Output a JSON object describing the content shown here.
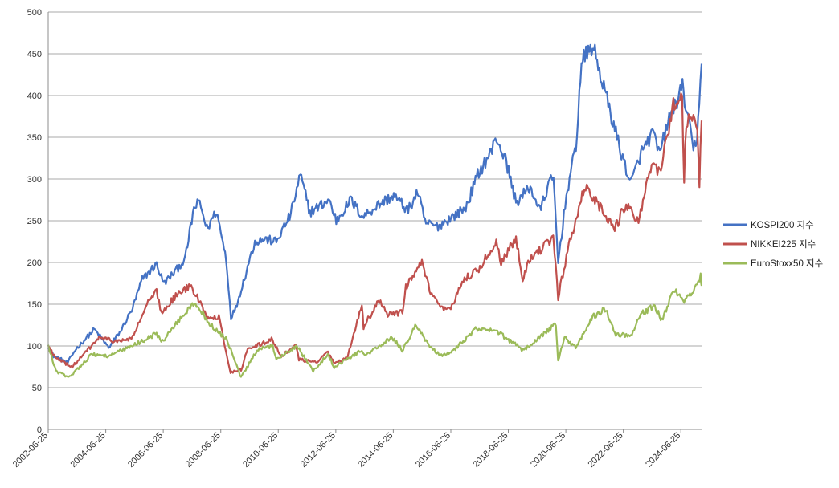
{
  "chart_data": {
    "type": "line",
    "title": "",
    "xlabel": "",
    "ylabel": "",
    "xlim": [
      "2002-06-25",
      "2025-03-15"
    ],
    "ylim": [
      0,
      500
    ],
    "y_ticks": [
      0,
      50,
      100,
      150,
      200,
      250,
      300,
      350,
      400,
      450,
      500
    ],
    "x_ticks": [
      "2002-06-25",
      "2004-06-25",
      "2006-06-25",
      "2008-06-25",
      "2010-06-25",
      "2012-06-25",
      "2014-06-25",
      "2016-06-25",
      "2018-06-25",
      "2020-06-25",
      "2022-06-25",
      "2024-06-25"
    ],
    "grid": "horizontal",
    "legend": "right",
    "series": [
      {
        "name": "KOSPI200 지수",
        "color": "#4472C4",
        "points": [
          [
            "2002-06-25",
            100
          ],
          [
            "2002-09-01",
            88
          ],
          [
            "2003-03-01",
            80
          ],
          [
            "2003-06-01",
            95
          ],
          [
            "2004-02-01",
            120
          ],
          [
            "2004-08-01",
            98
          ],
          [
            "2005-01-01",
            118
          ],
          [
            "2005-06-01",
            145
          ],
          [
            "2005-10-01",
            180
          ],
          [
            "2006-04-01",
            198
          ],
          [
            "2006-07-01",
            175
          ],
          [
            "2006-12-01",
            190
          ],
          [
            "2007-04-01",
            205
          ],
          [
            "2007-07-20",
            265
          ],
          [
            "2007-10-01",
            272
          ],
          [
            "2008-01-01",
            240
          ],
          [
            "2008-05-01",
            262
          ],
          [
            "2008-09-01",
            205
          ],
          [
            "2008-11-01",
            135
          ],
          [
            "2009-01-01",
            145
          ],
          [
            "2009-06-01",
            195
          ],
          [
            "2009-09-01",
            225
          ],
          [
            "2010-01-01",
            228
          ],
          [
            "2010-06-01",
            225
          ],
          [
            "2010-12-01",
            258
          ],
          [
            "2011-04-01",
            305
          ],
          [
            "2011-08-01",
            260
          ],
          [
            "2012-04-01",
            275
          ],
          [
            "2012-07-01",
            250
          ],
          [
            "2013-01-01",
            275
          ],
          [
            "2013-06-01",
            255
          ],
          [
            "2014-01-01",
            270
          ],
          [
            "2014-07-01",
            280
          ],
          [
            "2015-01-01",
            262
          ],
          [
            "2015-05-01",
            285
          ],
          [
            "2015-08-01",
            248
          ],
          [
            "2016-01-01",
            243
          ],
          [
            "2016-06-01",
            252
          ],
          [
            "2017-01-01",
            265
          ],
          [
            "2017-06-01",
            305
          ],
          [
            "2017-12-01",
            335
          ],
          [
            "2018-01-25",
            350
          ],
          [
            "2018-06-01",
            320
          ],
          [
            "2018-10-01",
            272
          ],
          [
            "2019-04-01",
            290
          ],
          [
            "2019-08-01",
            262
          ],
          [
            "2019-12-01",
            296
          ],
          [
            "2020-01-20",
            300
          ],
          [
            "2020-03-19",
            200
          ],
          [
            "2020-07-01",
            280
          ],
          [
            "2020-11-01",
            340
          ],
          [
            "2021-01-10",
            440
          ],
          [
            "2021-06-01",
            460
          ],
          [
            "2021-12-01",
            395
          ],
          [
            "2022-06-01",
            330
          ],
          [
            "2022-09-30",
            295
          ],
          [
            "2023-02-01",
            330
          ],
          [
            "2023-07-01",
            355
          ],
          [
            "2023-10-01",
            330
          ],
          [
            "2024-01-01",
            365
          ],
          [
            "2024-07-15",
            410
          ],
          [
            "2024-12-01",
            335
          ],
          [
            "2025-01-15",
            350
          ],
          [
            "2025-03-15",
            438
          ]
        ]
      },
      {
        "name": "NIKKEI225 지수",
        "color": "#C0504D",
        "points": [
          [
            "2002-06-25",
            100
          ],
          [
            "2002-10-01",
            85
          ],
          [
            "2003-04-28",
            75
          ],
          [
            "2004-04-01",
            110
          ],
          [
            "2004-12-01",
            105
          ],
          [
            "2005-06-01",
            110
          ],
          [
            "2005-12-01",
            150
          ],
          [
            "2006-04-01",
            165
          ],
          [
            "2006-06-01",
            140
          ],
          [
            "2006-12-01",
            160
          ],
          [
            "2007-06-01",
            172
          ],
          [
            "2007-09-01",
            158
          ],
          [
            "2008-01-01",
            135
          ],
          [
            "2008-06-01",
            135
          ],
          [
            "2008-10-27",
            68
          ],
          [
            "2009-03-10",
            72
          ],
          [
            "2009-06-01",
            95
          ],
          [
            "2010-04-01",
            108
          ],
          [
            "2010-08-01",
            88
          ],
          [
            "2011-02-01",
            100
          ],
          [
            "2011-03-15",
            84
          ],
          [
            "2011-11-01",
            80
          ],
          [
            "2012-03-01",
            95
          ],
          [
            "2012-06-01",
            80
          ],
          [
            "2012-11-14",
            85
          ],
          [
            "2013-05-22",
            150
          ],
          [
            "2013-06-13",
            123
          ],
          [
            "2013-12-30",
            155
          ],
          [
            "2014-04-01",
            138
          ],
          [
            "2014-10-20",
            140
          ],
          [
            "2014-12-01",
            170
          ],
          [
            "2015-06-24",
            200
          ],
          [
            "2015-09-29",
            166
          ],
          [
            "2016-02-12",
            145
          ],
          [
            "2016-06-24",
            143
          ],
          [
            "2016-12-01",
            180
          ],
          [
            "2017-06-01",
            190
          ],
          [
            "2018-01-23",
            225
          ],
          [
            "2018-03-26",
            200
          ],
          [
            "2018-10-01",
            230
          ],
          [
            "2018-12-25",
            182
          ],
          [
            "2019-04-01",
            205
          ],
          [
            "2019-12-01",
            225
          ],
          [
            "2020-01-17",
            230
          ],
          [
            "2020-03-19",
            158
          ],
          [
            "2020-08-01",
            220
          ],
          [
            "2021-02-16",
            290
          ],
          [
            "2021-06-01",
            280
          ],
          [
            "2022-03-08",
            240
          ],
          [
            "2022-08-01",
            270
          ],
          [
            "2022-12-01",
            255
          ],
          [
            "2023-01-04",
            252
          ],
          [
            "2023-07-03",
            320
          ],
          [
            "2023-10-01",
            305
          ],
          [
            "2024-03-22",
            390
          ],
          [
            "2024-07-11",
            400
          ],
          [
            "2024-08-05",
            300
          ],
          [
            "2024-09-01",
            370
          ],
          [
            "2024-12-01",
            375
          ],
          [
            "2025-01-20",
            355
          ],
          [
            "2025-02-15",
            295
          ],
          [
            "2025-03-15",
            370
          ]
        ]
      },
      {
        "name": "EuroStoxx50 지수",
        "color": "#9BBB59",
        "points": [
          [
            "2002-06-25",
            100
          ],
          [
            "2002-10-01",
            70
          ],
          [
            "2003-03-12",
            62
          ],
          [
            "2004-01-01",
            90
          ],
          [
            "2004-08-01",
            88
          ],
          [
            "2005-06-01",
            100
          ],
          [
            "2006-04-01",
            115
          ],
          [
            "2006-06-14",
            105
          ],
          [
            "2007-01-01",
            130
          ],
          [
            "2007-07-13",
            150
          ],
          [
            "2007-10-01",
            145
          ],
          [
            "2008-01-21",
            128
          ],
          [
            "2008-06-01",
            115
          ],
          [
            "2008-09-01",
            110
          ],
          [
            "2009-03-09",
            62
          ],
          [
            "2009-10-01",
            95
          ],
          [
            "2010-04-15",
            100
          ],
          [
            "2010-06-01",
            85
          ],
          [
            "2011-02-17",
            100
          ],
          [
            "2011-09-12",
            70
          ],
          [
            "2012-03-16",
            90
          ],
          [
            "2012-06-04",
            75
          ],
          [
            "2013-05-22",
            95
          ],
          [
            "2013-06-24",
            88
          ],
          [
            "2014-06-10",
            110
          ],
          [
            "2014-10-16",
            95
          ],
          [
            "2015-04-13",
            125
          ],
          [
            "2015-09-29",
            100
          ],
          [
            "2016-02-11",
            88
          ],
          [
            "2016-06-27",
            92
          ],
          [
            "2017-05-05",
            120
          ],
          [
            "2018-01-23",
            118
          ],
          [
            "2018-12-27",
            95
          ],
          [
            "2019-12-01",
            120
          ],
          [
            "2020-02-19",
            127
          ],
          [
            "2020-03-18",
            82
          ],
          [
            "2020-06-08",
            110
          ],
          [
            "2020-10-28",
            98
          ],
          [
            "2021-06-01",
            135
          ],
          [
            "2021-11-18",
            145
          ],
          [
            "2022-03-07",
            115
          ],
          [
            "2022-09-29",
            112
          ],
          [
            "2023-02-01",
            138
          ],
          [
            "2023-07-31",
            148
          ],
          [
            "2023-10-27",
            130
          ],
          [
            "2024-03-28",
            168
          ],
          [
            "2024-08-05",
            155
          ],
          [
            "2024-12-01",
            165
          ],
          [
            "2025-03-03",
            183
          ],
          [
            "2025-03-15",
            172
          ]
        ]
      }
    ]
  }
}
